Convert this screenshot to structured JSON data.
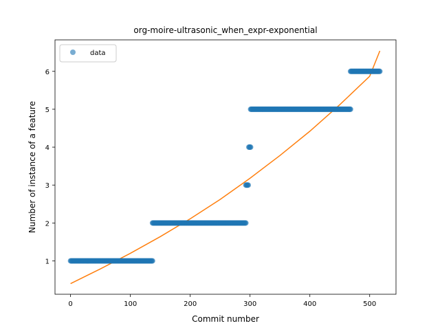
{
  "chart_data": {
    "type": "scatter",
    "title": "org-moire-ultrasonic_when_expr-exponential",
    "xlabel": "Commit number",
    "ylabel": "Number of instance of a feature",
    "xlim": [
      -26,
      544
    ],
    "ylim": [
      0.12,
      6.83
    ],
    "xticks": [
      0,
      100,
      200,
      300,
      400,
      500
    ],
    "yticks": [
      1,
      2,
      3,
      4,
      5,
      6
    ],
    "grid": false,
    "legend": {
      "position": "top-left",
      "entries": [
        {
          "label": "data",
          "marker": "circle"
        }
      ]
    },
    "colors": {
      "data": "#1f77b4",
      "fit": "#ff7f0e"
    },
    "series": [
      {
        "name": "data",
        "kind": "scatter",
        "segments": [
          {
            "x_start": 0,
            "x_end": 137,
            "y": 1
          },
          {
            "x_start": 137,
            "x_end": 293,
            "y": 2
          },
          {
            "x_start": 293,
            "x_end": 297,
            "y": 3
          },
          {
            "x_start": 298,
            "x_end": 301,
            "y": 4
          },
          {
            "x_start": 301,
            "x_end": 468,
            "y": 5
          },
          {
            "x_start": 468,
            "x_end": 517,
            "y": 6
          }
        ]
      },
      {
        "name": "",
        "kind": "line",
        "model": "exponential",
        "x": [
          0,
          50,
          100,
          150,
          200,
          250,
          300,
          350,
          400,
          450,
          500,
          517
        ],
        "y": [
          0.4,
          0.79,
          1.2,
          1.64,
          2.11,
          2.62,
          3.18,
          3.78,
          4.42,
          5.12,
          5.87,
          6.54
        ]
      }
    ]
  }
}
